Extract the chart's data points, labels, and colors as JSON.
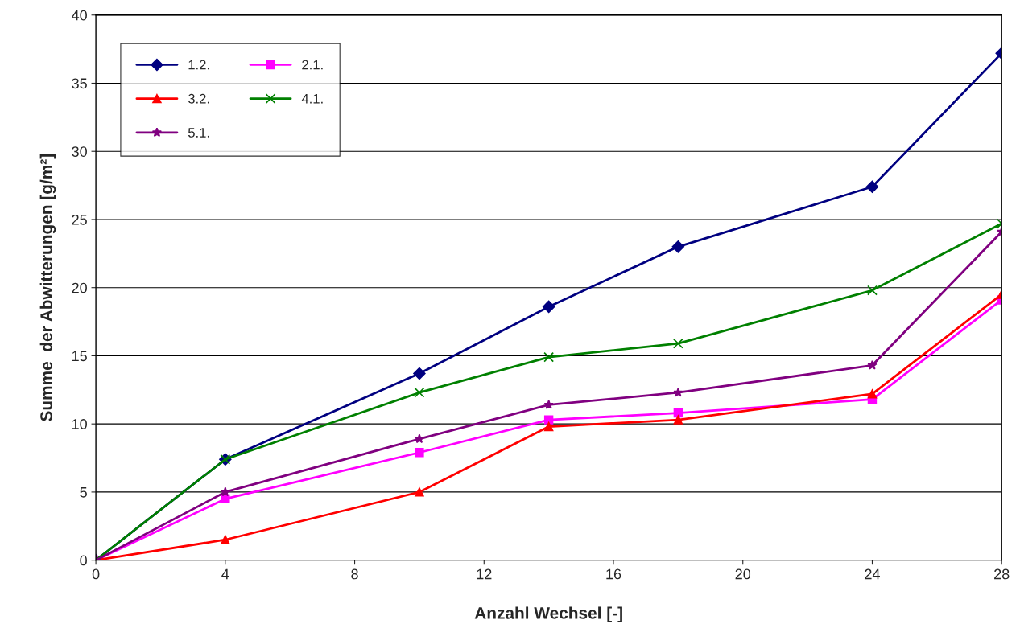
{
  "chart_data": {
    "type": "line",
    "xlabel": "Anzahl Wechsel [-]",
    "ylabel": "Summe  der Abwitterungen [g/m²]",
    "x": [
      0,
      4,
      10,
      14,
      18,
      24,
      28
    ],
    "series": [
      {
        "name": "1.2.",
        "color": "#000080",
        "marker": "diamond",
        "values": [
          0,
          7.4,
          13.7,
          18.6,
          23.0,
          27.4,
          37.2
        ]
      },
      {
        "name": "2.1.",
        "color": "#ff00ff",
        "marker": "square",
        "values": [
          0,
          4.5,
          7.9,
          10.3,
          10.8,
          11.8,
          19.1
        ]
      },
      {
        "name": "3.2.",
        "color": "#ff0000",
        "marker": "triangle",
        "values": [
          0,
          1.5,
          5.0,
          9.8,
          10.3,
          12.2,
          19.5
        ]
      },
      {
        "name": "4.1.",
        "color": "#008000",
        "marker": "cross",
        "values": [
          0,
          7.4,
          12.3,
          14.9,
          15.9,
          19.8,
          24.7
        ]
      },
      {
        "name": "5.1.",
        "color": "#800080",
        "marker": "star",
        "values": [
          0,
          5.0,
          8.9,
          11.4,
          12.3,
          14.3,
          24.1
        ]
      }
    ],
    "xlim": [
      0,
      28
    ],
    "xticks": [
      0,
      4,
      8,
      12,
      16,
      20,
      24,
      28
    ],
    "ylim": [
      0,
      40
    ],
    "yticks": [
      0,
      5,
      10,
      15,
      20,
      25,
      30,
      35,
      40
    ],
    "grid": "y",
    "legend": "top left",
    "line_style": "solid"
  }
}
